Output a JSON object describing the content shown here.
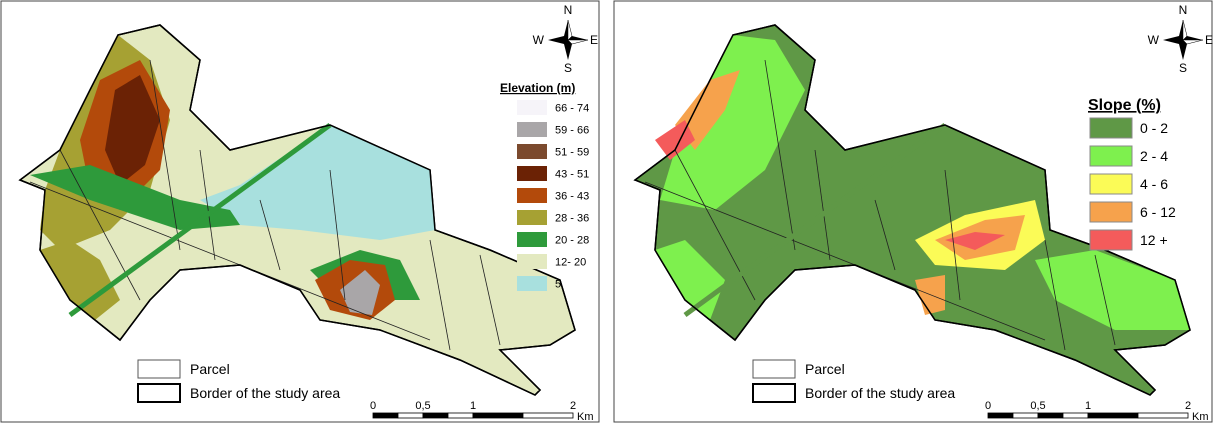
{
  "maps": [
    {
      "legend": {
        "title": "Elevation (m)",
        "classes": [
          {
            "label": "66 - 74",
            "color": "#f6f4f9"
          },
          {
            "label": "59 - 66",
            "color": "#a9a6a8"
          },
          {
            "label": "51 - 59",
            "color": "#7b4a2e"
          },
          {
            "label": "43 - 51",
            "color": "#6b2205"
          },
          {
            "label": "36 - 43",
            "color": "#b34a0b"
          },
          {
            "label": "28 - 36",
            "color": "#a6a133"
          },
          {
            "label": "20 - 28",
            "color": "#2e9a3b"
          },
          {
            "label": "12- 20",
            "color": "#e3e9c0"
          },
          {
            "label": "5",
            "color": "#a8e0de"
          }
        ]
      }
    },
    {
      "legend": {
        "title": "Slope (%)",
        "classes": [
          {
            "label": "0 - 2",
            "color": "#5f9846"
          },
          {
            "label": "2 - 4",
            "color": "#7ef04e"
          },
          {
            "label": "4 - 6",
            "color": "#fbfb57"
          },
          {
            "label": "6 - 12",
            "color": "#f6a24c"
          },
          {
            "label": "12 +",
            "color": "#f45b5b"
          }
        ]
      }
    }
  ],
  "compass": {
    "n": "N",
    "s": "S",
    "e": "E",
    "w": "W"
  },
  "key": {
    "parcel": "Parcel",
    "border": "Border of the study area"
  },
  "scale": {
    "labels": [
      "0",
      "0,5",
      "1",
      "2"
    ],
    "unit": "Km"
  }
}
